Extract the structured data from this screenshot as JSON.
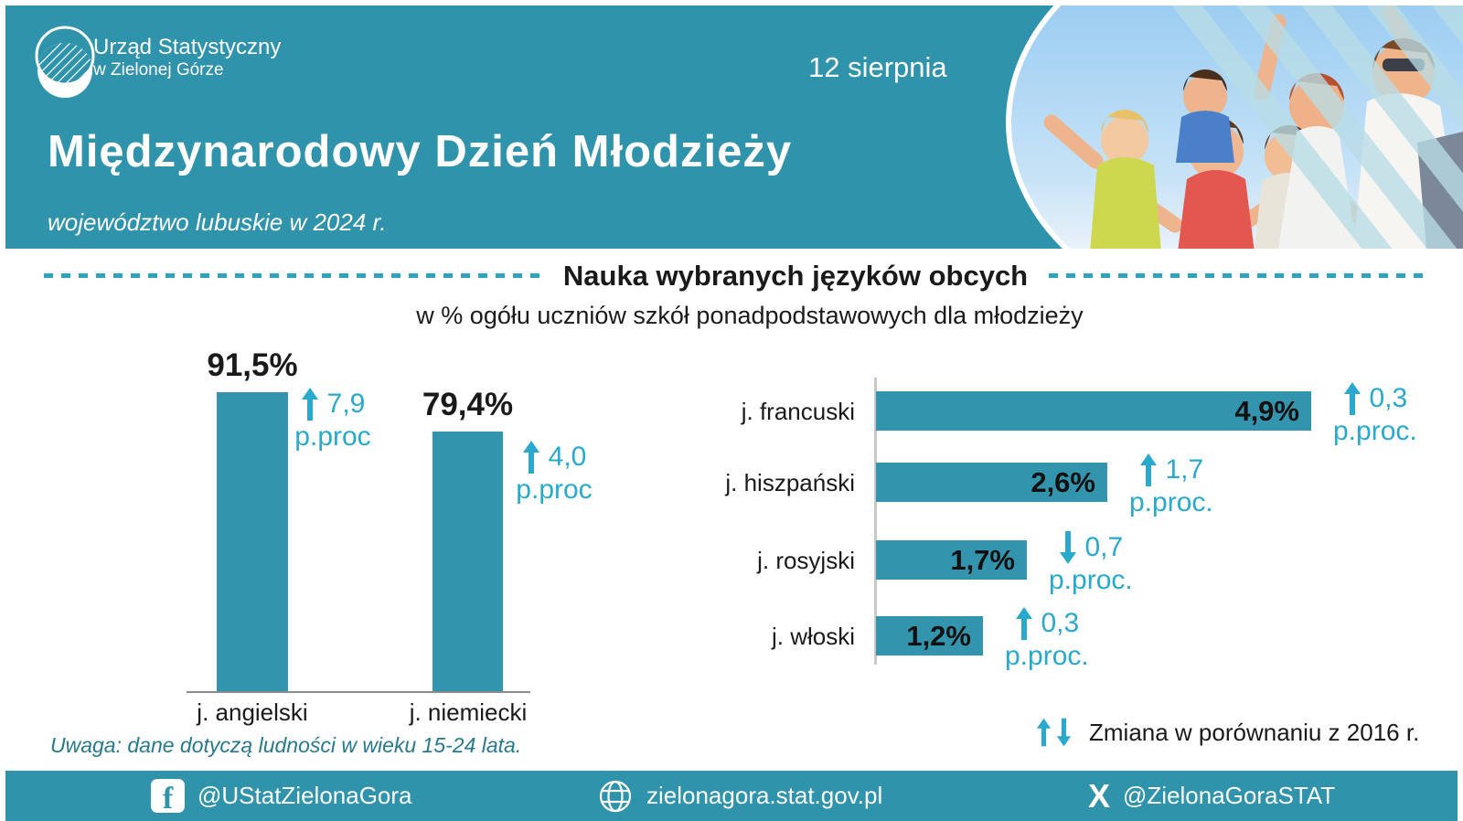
{
  "header": {
    "org_name_line1": "Urząd Statystyczny",
    "org_name_line2": "w Zielonej Górze",
    "date": "12 sierpnia",
    "title": "Międzynarodowy Dzień Młodzieży",
    "subtitle": "województwo lubuskie w 2024 r."
  },
  "chart_data": [
    {
      "type": "bar",
      "orientation": "vertical",
      "title": "Nauka wybranych języków obcych",
      "subtitle": "w % ogółu uczniów szkół ponadpodstawowych dla młodzieży",
      "categories": [
        "j. angielski",
        "j. niemiecki"
      ],
      "values": [
        91.5,
        79.4
      ],
      "value_labels": [
        "91,5%",
        "79,4%"
      ],
      "changes": [
        {
          "direction": "up",
          "value": 7.9,
          "label": "7,9",
          "unit": "p.proc"
        },
        {
          "direction": "up",
          "value": 4.0,
          "label": "4,0",
          "unit": "p.proc"
        }
      ],
      "ylim": [
        0,
        100
      ],
      "grid": false
    },
    {
      "type": "bar",
      "orientation": "horizontal",
      "categories": [
        "j. francuski",
        "j. hiszpański",
        "j. rosyjski",
        "j. włoski"
      ],
      "values": [
        4.9,
        2.6,
        1.7,
        1.2
      ],
      "value_labels": [
        "4,9%",
        "2,6%",
        "1,7%",
        "1,2%"
      ],
      "changes": [
        {
          "direction": "up",
          "value": 0.3,
          "label": "0,3",
          "unit": "p.proc."
        },
        {
          "direction": "up",
          "value": 1.7,
          "label": "1,7",
          "unit": "p.proc."
        },
        {
          "direction": "down",
          "value": 0.7,
          "label": "0,7",
          "unit": "p.proc."
        },
        {
          "direction": "up",
          "value": 0.3,
          "label": "0,3",
          "unit": "p.proc."
        }
      ],
      "xlim": [
        0,
        5
      ],
      "grid": false
    }
  ],
  "legend": {
    "text": "Zmiana w porównaniu z 2016 r."
  },
  "note": "Uwaga: dane dotyczą ludności w wieku 15-24 lata.",
  "footer": {
    "facebook_handle": "@UStatZielonaGora",
    "website": "zielonagora.stat.gov.pl",
    "x_handle": "@ZielonaGoraSTAT"
  },
  "colors": {
    "header_teal": "#2F93AB",
    "bar_teal": "#3394AD",
    "accent_cyan": "#29A9CE",
    "dash_cyan": "#2EA2BF",
    "note_teal": "#26798E",
    "text_black": "#1A1A1A"
  }
}
